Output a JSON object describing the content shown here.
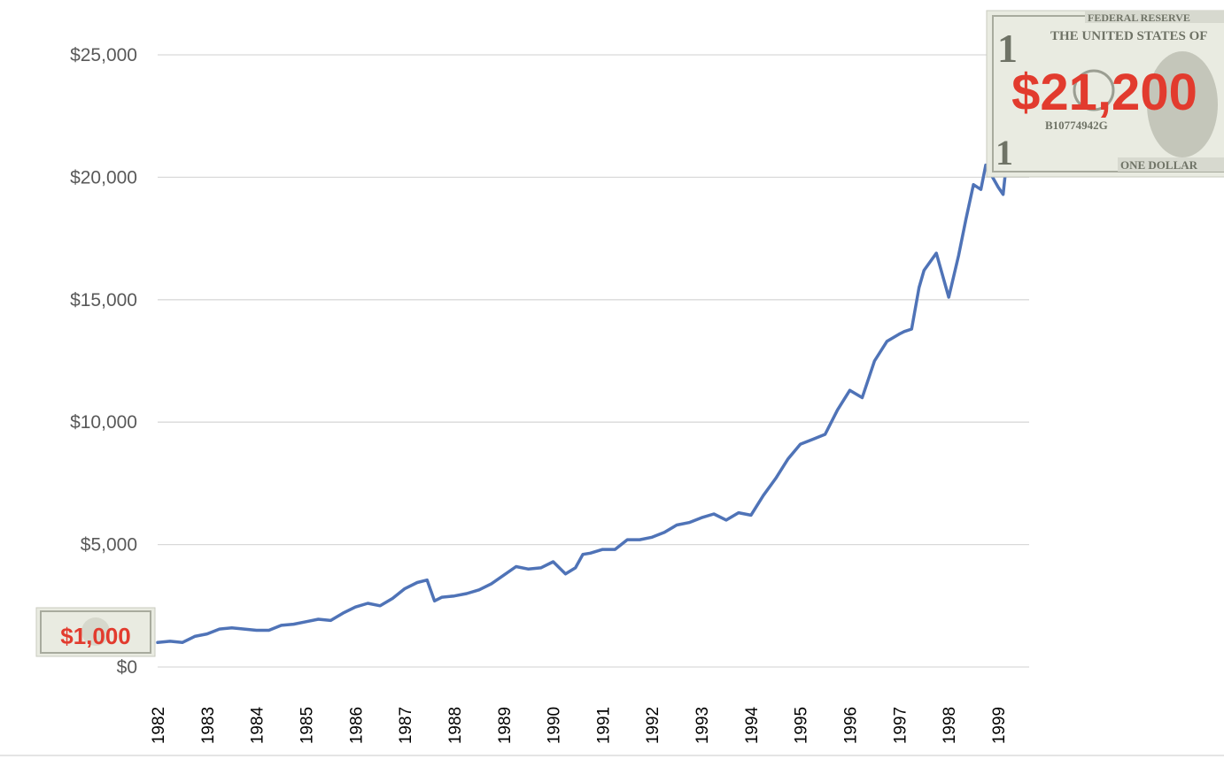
{
  "chart_data": {
    "type": "line",
    "title": "",
    "xlabel": "",
    "ylabel": "",
    "x_tick_labels": [
      "1982",
      "1983",
      "1984",
      "1985",
      "1986",
      "1987",
      "1988",
      "1989",
      "1990",
      "1991",
      "1992",
      "1993",
      "1994",
      "1995",
      "1996",
      "1997",
      "1998",
      "1999"
    ],
    "y_tick_labels": [
      "$0",
      "$5,000",
      "$10,000",
      "$15,000",
      "$20,000",
      "$25,000"
    ],
    "y_ticks": [
      0,
      5000,
      10000,
      15000,
      20000,
      25000
    ],
    "xlim": [
      1982,
      1999.7
    ],
    "ylim": [
      0,
      25000
    ],
    "grid": true,
    "legend": "none",
    "line_color": "#4f73b7",
    "series": [
      {
        "x": [
          1982.0,
          1982.25,
          1982.5,
          1982.75,
          1983.0,
          1983.25,
          1983.5,
          1983.75,
          1984.0,
          1984.25,
          1984.5,
          1984.75,
          1985.0,
          1985.25,
          1985.5,
          1985.75,
          1986.0,
          1986.25,
          1986.5,
          1986.75,
          1987.0,
          1987.25,
          1987.45,
          1987.6,
          1987.75,
          1988.0,
          1988.25,
          1988.5,
          1988.75,
          1989.0,
          1989.25,
          1989.5,
          1989.75,
          1990.0,
          1990.25,
          1990.45,
          1990.6,
          1990.75,
          1991.0,
          1991.25,
          1991.5,
          1991.75,
          1992.0,
          1992.25,
          1992.5,
          1992.75,
          1993.0,
          1993.25,
          1993.5,
          1993.75,
          1994.0,
          1994.25,
          1994.5,
          1994.75,
          1995.0,
          1995.25,
          1995.5,
          1995.75,
          1996.0,
          1996.25,
          1996.5,
          1996.75,
          1997.0,
          1997.1,
          1997.25,
          1997.4,
          1997.5,
          1997.75,
          1998.0,
          1998.2,
          1998.35,
          1998.5,
          1998.65,
          1998.75,
          1999.0,
          1999.1,
          1999.2,
          1999.3,
          1999.45,
          1999.55,
          1999.65
        ],
        "y": [
          1000,
          1050,
          1000,
          1250,
          1350,
          1550,
          1600,
          1550,
          1500,
          1500,
          1700,
          1750,
          1850,
          1950,
          1900,
          2200,
          2450,
          2600,
          2500,
          2800,
          3200,
          3450,
          3550,
          2700,
          2850,
          2900,
          3000,
          3150,
          3400,
          3750,
          4100,
          4000,
          4050,
          4300,
          3800,
          4050,
          4600,
          4650,
          4800,
          4800,
          5200,
          5200,
          5300,
          5500,
          5800,
          5900,
          6100,
          6250,
          6000,
          6300,
          6200,
          7000,
          7700,
          8500,
          9100,
          9300,
          9500,
          10500,
          11300,
          11000,
          12500,
          13300,
          13600,
          13700,
          13800,
          15500,
          16200,
          16900,
          15100,
          16800,
          18300,
          19700,
          19500,
          20500,
          19600,
          19300,
          21200,
          21200,
          21200,
          21200,
          21200
        ],
        "end_label": "$21,200",
        "start_label": "$1,000"
      }
    ]
  },
  "annotations": {
    "start_value": "$1,000",
    "end_value": "$21,200",
    "label_color": "#e23b2e",
    "bill_text_top": "FEDERAL RESERVE",
    "bill_text_main": "THE UNITED STATES OF",
    "bill_serial": "B10774942G",
    "bill_bottom": "ONE DOLLAR"
  }
}
